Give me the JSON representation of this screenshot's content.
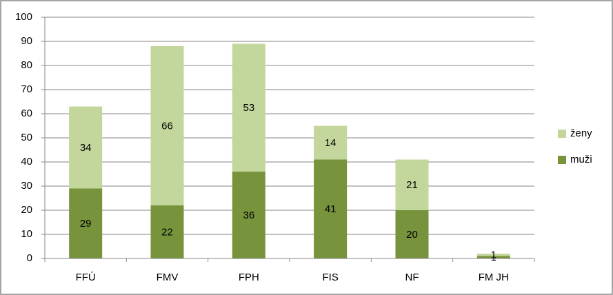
{
  "chart_data": {
    "type": "stacked-bar",
    "categories": [
      "FFÚ",
      "FMV",
      "FPH",
      "FIS",
      "NF",
      "FM JH"
    ],
    "series": [
      {
        "name": "muži",
        "color": "#77933c",
        "values": [
          29,
          22,
          36,
          41,
          20,
          1
        ]
      },
      {
        "name": "ženy",
        "color": "#c3d69b",
        "values": [
          34,
          66,
          53,
          14,
          21,
          1
        ]
      }
    ],
    "ylim": [
      0,
      100
    ],
    "yticks": [
      0,
      10,
      20,
      30,
      40,
      50,
      60,
      70,
      80,
      90,
      100
    ],
    "grid": true,
    "legend": "right"
  }
}
